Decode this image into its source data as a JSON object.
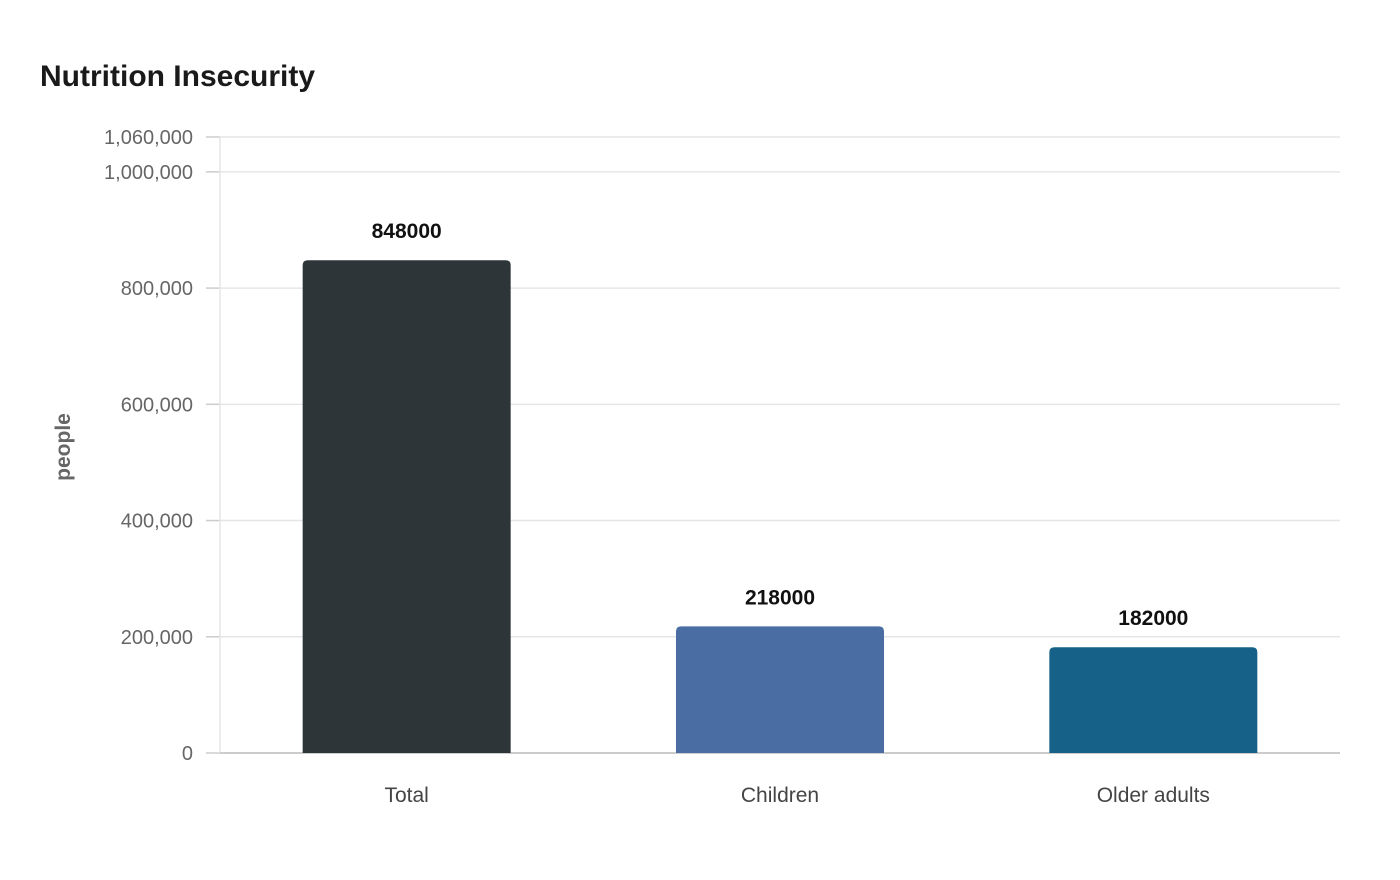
{
  "chart_data": {
    "type": "bar",
    "title": "Nutrition Insecurity",
    "xlabel": "",
    "ylabel": "people",
    "categories": [
      "Total",
      "Children",
      "Older adults"
    ],
    "values": [
      848000,
      218000,
      182000
    ],
    "value_labels": [
      "848000",
      "218000",
      "182000"
    ],
    "colors": [
      "#2e3538",
      "#4a6ea4",
      "#166187"
    ],
    "ylim": [
      0,
      1060000
    ],
    "yticks": [
      0,
      200000,
      400000,
      600000,
      800000,
      1000000,
      1060000
    ],
    "ytick_labels": [
      "0",
      "200,000",
      "400,000",
      "600,000",
      "800,000",
      "1,000,000",
      "1,060,000"
    ],
    "grid": true,
    "legend": "none"
  }
}
